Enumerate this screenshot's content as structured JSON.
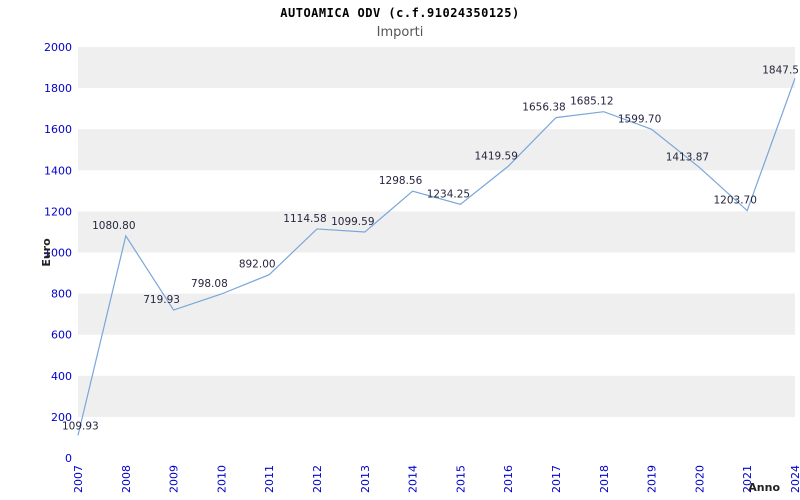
{
  "title": "AUTOAMICA ODV (c.f.91024350125)",
  "subtitle": "Importi",
  "chart_data": {
    "type": "line",
    "title": "AUTOAMICA ODV (c.f.91024350125)",
    "subtitle": "Importi",
    "xlabel": "Anno",
    "ylabel": "Euro",
    "categories": [
      "2007",
      "2008",
      "2009",
      "2010",
      "2011",
      "2012",
      "2013",
      "2014",
      "2015",
      "2016",
      "2017",
      "2018",
      "2019",
      "2020",
      "2021",
      "2024"
    ],
    "values": [
      109.93,
      1080.8,
      719.93,
      798.08,
      892.0,
      1114.58,
      1099.59,
      1298.56,
      1234.25,
      1419.59,
      1656.38,
      1685.12,
      1599.7,
      1413.87,
      1203.7,
      1847.5
    ],
    "point_labels": [
      "109.93",
      "1080.80",
      "719.93",
      "798.08",
      "892.00",
      "1114.58",
      "1099.59",
      "1298.56",
      "1234.25",
      "1419.59",
      "1656.38",
      "1685.12",
      "1599.70",
      "1413.87",
      "1203.70",
      "1847.5"
    ],
    "ylim": [
      0,
      2000
    ],
    "ytick_step": 200,
    "grid": "alternating-horizontal-bands",
    "legend": "none",
    "colors": {
      "line": "#7aa6d9",
      "band": "#efefef",
      "axis_text": "#0000cc",
      "label_text": "#26263f",
      "title_text": "#000000",
      "subtitle_text": "#555555",
      "axis_title_text": "#222222"
    }
  }
}
